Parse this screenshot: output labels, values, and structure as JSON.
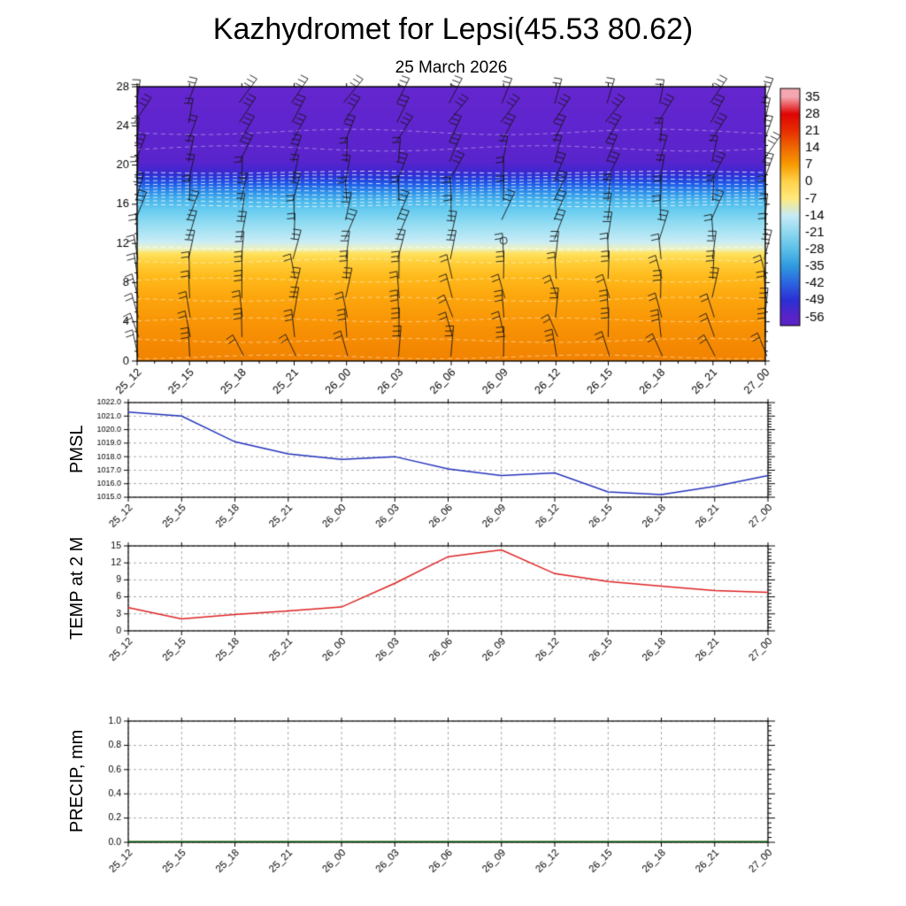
{
  "title": "Kazhydromet for Lepsi(45.53 80.62)",
  "subtitle": "25 March 2026",
  "categories": [
    "25_12",
    "25_15",
    "25_18",
    "25_21",
    "26_00",
    "26_03",
    "26_06",
    "26_09",
    "26_12",
    "26_15",
    "26_18",
    "26_21",
    "27_00"
  ],
  "chart_data": [
    {
      "type": "heatmap",
      "name": "temperature-height-cross-section",
      "description": "Time-height filled temperature cross-section with black wind barbs and white dashed contour lines; one calm-wind circle near 26_09 at ~12 km",
      "x_categories": [
        "25_12",
        "25_15",
        "25_18",
        "25_21",
        "26_00",
        "26_03",
        "26_06",
        "26_09",
        "26_12",
        "26_15",
        "26_18",
        "26_21",
        "27_00"
      ],
      "ylim": [
        0,
        28
      ],
      "yticks": [
        0,
        4,
        8,
        12,
        16,
        20,
        24,
        28
      ],
      "height_temperature_profile": {
        "heights_km": [
          0,
          2,
          4,
          6,
          8,
          10,
          11,
          12,
          14,
          16,
          17,
          18,
          19,
          20,
          24,
          28
        ],
        "temp_c": [
          13,
          9,
          5,
          1,
          -3,
          -6,
          -8,
          -15,
          -27,
          -39,
          -45,
          -51,
          -56,
          -58,
          -58,
          -57
        ]
      },
      "colorbar": {
        "labels": [
          35,
          28,
          21,
          14,
          7,
          0,
          -7,
          -14,
          -21,
          -28,
          -35,
          -42,
          -49,
          -56
        ],
        "colors": [
          "#f4a7b0",
          "#e00505",
          "#e62e00",
          "#f06800",
          "#f89c00",
          "#ffd24a",
          "#ffe97e",
          "#c7eaf6",
          "#8fd8f0",
          "#5bbfe8",
          "#2f9ade",
          "#2b64e0",
          "#2b2fd4",
          "#5a23c8"
        ]
      }
    },
    {
      "type": "line",
      "name": "pmsl",
      "ylabel": "PMSL",
      "categories": [
        "25_12",
        "25_15",
        "25_18",
        "25_21",
        "26_00",
        "26_03",
        "26_06",
        "26_09",
        "26_12",
        "26_15",
        "26_18",
        "26_21",
        "27_00"
      ],
      "values": [
        1021.3,
        1021.0,
        1019.1,
        1018.2,
        1017.8,
        1018.0,
        1017.1,
        1016.6,
        1016.8,
        1015.4,
        1015.2,
        1015.8,
        1016.6
      ],
      "ylim": [
        1015,
        1022
      ],
      "yticks": [
        1015,
        1016,
        1017,
        1018,
        1019,
        1020,
        1021,
        1022
      ],
      "ytick_labels": [
        "1015.0",
        "1016.0",
        "1017.0",
        "1018.0",
        "1019.0",
        "1020.0",
        "1021.0",
        "1022.0"
      ],
      "line_color": "#2233bb",
      "grid": "dashed"
    },
    {
      "type": "line",
      "name": "temp-2m",
      "ylabel": "TEMP at 2 M",
      "categories": [
        "25_12",
        "25_15",
        "25_18",
        "25_21",
        "26_00",
        "26_03",
        "26_06",
        "26_09",
        "26_12",
        "26_15",
        "26_18",
        "26_21",
        "27_00"
      ],
      "values": [
        4.1,
        2.1,
        2.9,
        3.5,
        4.2,
        8.4,
        13.1,
        14.3,
        10.1,
        8.7,
        7.9,
        7.1,
        6.8
      ],
      "ylim": [
        0,
        15
      ],
      "yticks": [
        0,
        3,
        6,
        9,
        12,
        15
      ],
      "ytick_labels": [
        "0",
        "3",
        "6",
        "9",
        "12",
        "15"
      ],
      "line_color": "#dd2222",
      "grid": "dashed"
    },
    {
      "type": "line",
      "name": "precip",
      "ylabel": "PRECIP, mm",
      "categories": [
        "25_12",
        "25_15",
        "25_18",
        "25_21",
        "26_00",
        "26_03",
        "26_06",
        "26_09",
        "26_12",
        "26_15",
        "26_18",
        "26_21",
        "27_00"
      ],
      "values": [
        0,
        0,
        0,
        0,
        0,
        0,
        0,
        0,
        0,
        0,
        0,
        0,
        0
      ],
      "ylim": [
        0,
        1.0
      ],
      "yticks": [
        0,
        0.2,
        0.4,
        0.6,
        0.8,
        1.0
      ],
      "ytick_labels": [
        "0.0",
        "0.2",
        "0.4",
        "0.6",
        "0.8",
        "1.0"
      ],
      "line_color": "#004d00",
      "grid": "dashed"
    }
  ]
}
